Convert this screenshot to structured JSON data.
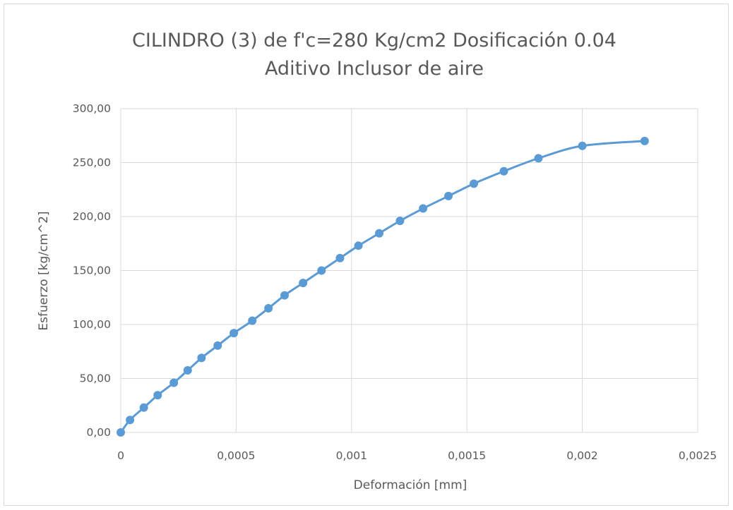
{
  "chart_data": {
    "type": "scatter",
    "title": "CILINDRO (3) de f'c=280 Kg/cm2 Dosificación 0.04",
    "subtitle": "Aditivo Inclusor de aire",
    "xlabel": "Deformación [mm]",
    "ylabel": "Esfuerzo [kg/cm^2]",
    "xlim": [
      0,
      0.0025
    ],
    "ylim": [
      0,
      300
    ],
    "x_ticks": [
      "0",
      "0,0005",
      "0,001",
      "0,0015",
      "0,002",
      "0,0025"
    ],
    "y_ticks": [
      "0,00",
      "50,00",
      "100,00",
      "150,00",
      "200,00",
      "250,00",
      "300,00"
    ],
    "grid": true,
    "style": "smooth line with markers",
    "color": "#5b9bd5",
    "series": [
      {
        "x": [
          0,
          4e-05,
          0.0001,
          0.00016,
          0.00023,
          0.00029,
          0.00035,
          0.00042,
          0.00049,
          0.00057,
          0.00064,
          0.00071,
          0.00079,
          0.00087,
          0.00095,
          0.00103,
          0.00112,
          0.00121,
          0.00131,
          0.00142,
          0.00153,
          0.00166,
          0.00181,
          0.002,
          0.00227
        ],
        "y": [
          0,
          11.5,
          23,
          34.5,
          46,
          57.5,
          69,
          80.5,
          92,
          103.5,
          115,
          127,
          138.5,
          150,
          161.5,
          173,
          184.5,
          196,
          207.5,
          219,
          230.5,
          242,
          254,
          265.5,
          270
        ]
      }
    ]
  }
}
